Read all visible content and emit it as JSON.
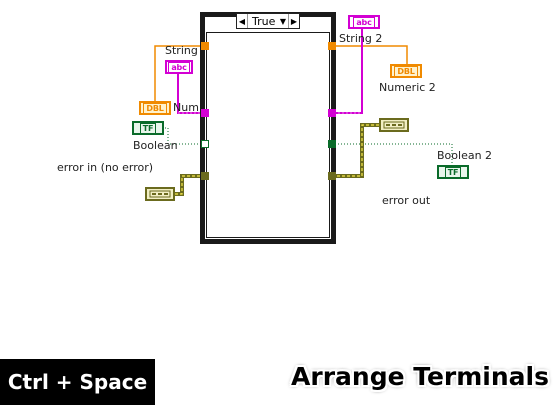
{
  "case_structure": {
    "selector_value": "True",
    "arrow_left": "◀",
    "arrow_right": "▶",
    "dropdown": "▼"
  },
  "terminals": {
    "string_in": {
      "label": "String",
      "text": "abc"
    },
    "numeric_in": {
      "label": "Num",
      "text": "DBL"
    },
    "boolean_in": {
      "label": "Boolean",
      "text": "TF"
    },
    "error_in": {
      "label": "error in (no error)"
    },
    "string_out": {
      "label": "String 2",
      "text": "abc"
    },
    "numeric_out": {
      "label": "Numeric 2",
      "text": "DBL"
    },
    "boolean_out": {
      "label": "Boolean 2",
      "text": "TF"
    },
    "error_out": {
      "label": "error out"
    }
  },
  "wire_colors": {
    "string": "#d300d3",
    "numeric": "#f08a00",
    "boolean": "#0a6b2a",
    "error": "#6b6b1e"
  },
  "overlay": {
    "shortcut": "Ctrl + Space",
    "caption": "Arrange Terminals"
  }
}
